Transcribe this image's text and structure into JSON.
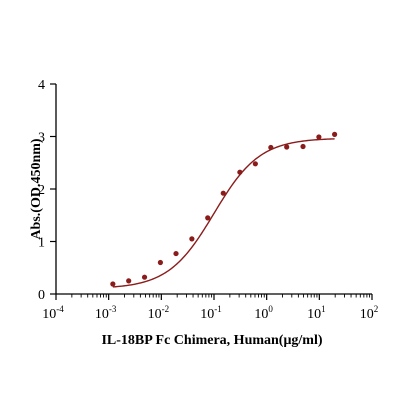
{
  "chart_data": {
    "type": "scatter",
    "title": "",
    "xlabel": "IL-18BP Fc Chimera, Human(μg/ml)",
    "ylabel": "Abs.(OD.450nm)",
    "x_scale": "log",
    "xlim": [
      0.0001,
      100
    ],
    "ylim": [
      0,
      4
    ],
    "x_ticks": [
      {
        "base": "10",
        "exp": "-4"
      },
      {
        "base": "10",
        "exp": "-3"
      },
      {
        "base": "10",
        "exp": "-2"
      },
      {
        "base": "10",
        "exp": "-1"
      },
      {
        "base": "10",
        "exp": "0"
      },
      {
        "base": "10",
        "exp": "1"
      },
      {
        "base": "10",
        "exp": "2"
      }
    ],
    "y_ticks": [
      "0",
      "1",
      "2",
      "3",
      "4"
    ],
    "grid": false,
    "legend": false,
    "color": "#8b1c1c",
    "series": [
      {
        "x": [
          0.0012,
          0.0024,
          0.0048,
          0.0096,
          0.019,
          0.038,
          0.076,
          0.15,
          0.31,
          0.61,
          1.2,
          2.4,
          4.9,
          9.8,
          19.5
        ],
        "y": [
          0.19,
          0.25,
          0.32,
          0.6,
          0.77,
          1.05,
          1.45,
          1.92,
          2.32,
          2.48,
          2.79,
          2.8,
          2.81,
          2.99,
          3.04
        ]
      }
    ],
    "fit_curve": {
      "model": "4PL",
      "bottom": 0.1,
      "top": 2.97,
      "ec50": 0.1,
      "hill": 1.0
    }
  }
}
